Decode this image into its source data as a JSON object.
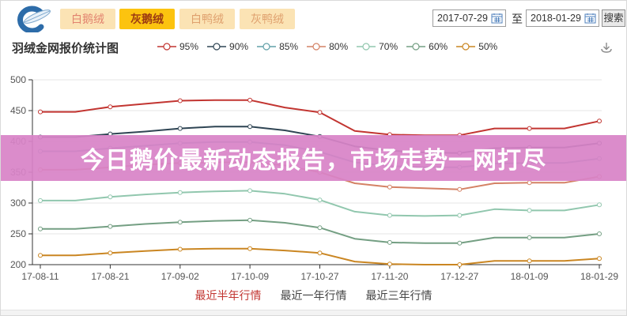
{
  "header": {
    "tabs": [
      {
        "label": "白鹅绒",
        "active": false
      },
      {
        "label": "灰鹅绒",
        "active": true
      },
      {
        "label": "白鸭绒",
        "active": false
      },
      {
        "label": "灰鸭绒",
        "active": false
      }
    ],
    "date_from": "2017-07-29",
    "to_label": "至",
    "date_to": "2018-01-29",
    "search_label": "搜索"
  },
  "banner": {
    "text": "今日鹅价最新动态报告，市场走势一网打尽",
    "bg": "rgba(216,131,199,0.93)",
    "text_color": "#ffffff"
  },
  "footer_tabs": [
    {
      "label": "最近半年行情",
      "active": true
    },
    {
      "label": "最近一年行情",
      "active": false
    },
    {
      "label": "最近三年行情",
      "active": false
    }
  ],
  "chart_data": {
    "type": "line",
    "title": "羽绒金网报价统计图",
    "x_labels": [
      "17-08-11",
      "17-08-21",
      "17-09-02",
      "17-10-09",
      "17-10-27",
      "17-11-20",
      "17-12-27",
      "18-01-09",
      "18-01-29"
    ],
    "y_ticks": [
      200,
      250,
      300,
      350,
      400,
      450,
      500
    ],
    "ylim": [
      200,
      500
    ],
    "grid": true,
    "legend_position": "top",
    "note": "17 data points per series; every second point carries an x-axis label and marker",
    "series": [
      {
        "name": "95%",
        "color": "#c23531",
        "values": [
          448,
          448,
          456,
          461,
          466,
          467,
          467,
          455,
          447,
          417,
          411,
          410,
          410,
          421,
          421,
          421,
          433
        ]
      },
      {
        "name": "90%",
        "color": "#2f4554",
        "values": [
          407,
          407,
          412,
          416,
          421,
          424,
          424,
          418,
          408,
          392,
          385,
          382,
          381,
          389,
          390,
          390,
          397
        ]
      },
      {
        "name": "85%",
        "color": "#61a0a8",
        "values": [
          384,
          384,
          389,
          393,
          397,
          399,
          399,
          394,
          383,
          366,
          360,
          358,
          358,
          364,
          365,
          365,
          372
        ]
      },
      {
        "name": "80%",
        "color": "#d48265",
        "values": [
          354,
          354,
          358,
          362,
          365,
          366,
          366,
          361,
          350,
          332,
          326,
          324,
          322,
          332,
          333,
          333,
          343
        ]
      },
      {
        "name": "70%",
        "color": "#91c7ae",
        "values": [
          304,
          304,
          310,
          314,
          317,
          319,
          320,
          315,
          305,
          286,
          280,
          279,
          280,
          290,
          288,
          288,
          297
        ]
      },
      {
        "name": "60%",
        "color": "#749f83",
        "values": [
          258,
          258,
          262,
          266,
          269,
          271,
          272,
          268,
          260,
          242,
          236,
          235,
          235,
          244,
          244,
          244,
          250
        ]
      },
      {
        "name": "50%",
        "color": "#ca8622",
        "values": [
          215,
          215,
          219,
          222,
          225,
          226,
          226,
          223,
          219,
          205,
          201,
          200,
          200,
          206,
          206,
          206,
          210
        ]
      }
    ]
  }
}
